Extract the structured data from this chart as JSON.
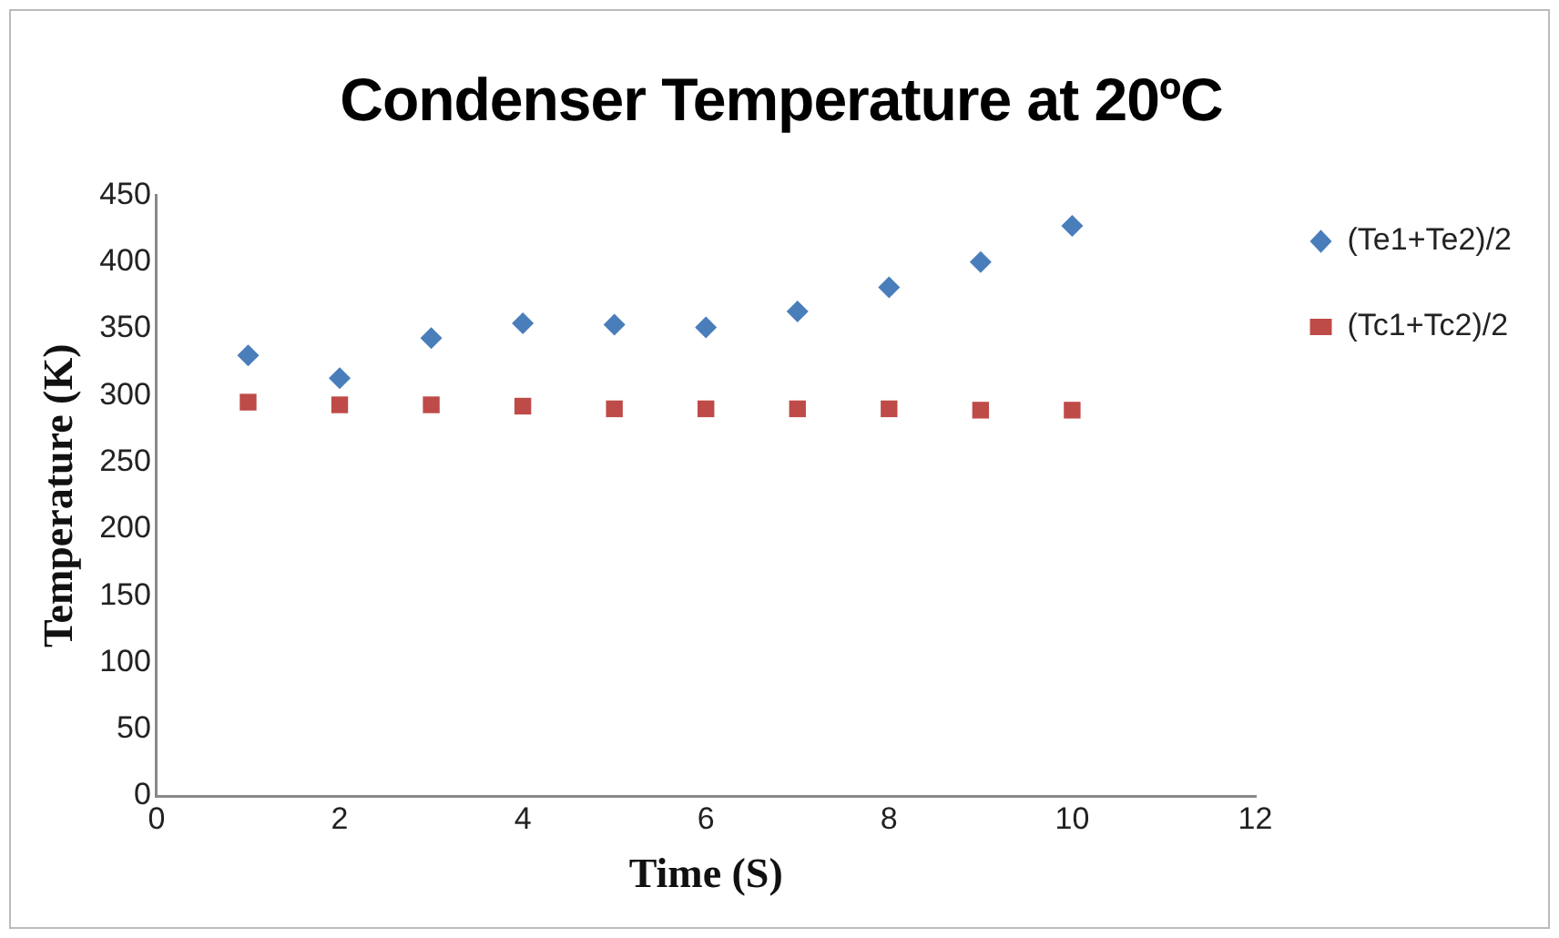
{
  "chart_data": {
    "type": "scatter",
    "title": "Condenser Temperature at 20ºC",
    "xlabel": "Time (S)",
    "ylabel": "Temperature (K)",
    "x": [
      1,
      2,
      3,
      4,
      5,
      6,
      7,
      8,
      9,
      10
    ],
    "series": [
      {
        "name": "(Te1+Te2)/2",
        "color": "#4a7ebb",
        "marker": "diamond",
        "values": [
          330,
          313,
          343,
          354,
          353,
          351,
          363,
          381,
          400,
          427
        ]
      },
      {
        "name": "(Tc1+Tc2)/2",
        "color": "#be4b48",
        "marker": "square",
        "values": [
          295,
          293,
          293,
          292,
          290,
          290,
          290,
          290,
          289,
          289
        ]
      }
    ],
    "xlim": [
      0,
      12
    ],
    "xticks": [
      0,
      2,
      4,
      6,
      8,
      10,
      12
    ],
    "ylim": [
      0,
      450
    ],
    "yticks": [
      0,
      50,
      100,
      150,
      200,
      250,
      300,
      350,
      400,
      450
    ],
    "grid": false,
    "legend": "right"
  }
}
